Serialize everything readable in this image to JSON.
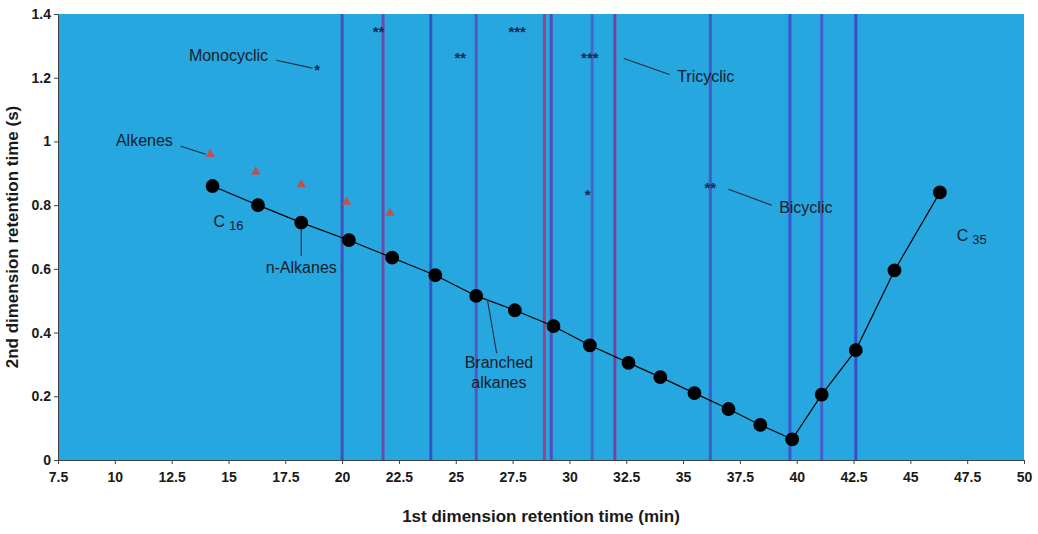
{
  "chart_data": {
    "type": "scatter",
    "xlabel": "1st dimension retention time (min)",
    "ylabel": "2nd dimension retention time (s)",
    "xlim": [
      7.5,
      50
    ],
    "xticks": [
      7.5,
      10,
      12.5,
      15,
      17.5,
      20,
      22.5,
      25,
      27.5,
      30,
      32.5,
      35,
      37.5,
      40,
      42.5,
      45,
      47.5,
      50
    ],
    "ylim": [
      0,
      1.4
    ],
    "yticks": [
      0,
      0.2,
      0.4,
      0.6,
      0.8,
      1,
      1.2,
      1.4
    ],
    "grid": false,
    "series": [
      {
        "color": "#000000",
        "marker": "circle",
        "line_style": "solid",
        "x": [
          14.3,
          16.3,
          18.2,
          20.3,
          22.2,
          24.1,
          25.9,
          27.6,
          29.3,
          30.9,
          32.6,
          34.0,
          35.5,
          37.0,
          38.4,
          39.8,
          41.1,
          42.6,
          44.3,
          46.3
        ],
        "values": [
          0.86,
          0.8,
          0.745,
          0.69,
          0.635,
          0.58,
          0.515,
          0.47,
          0.42,
          0.36,
          0.305,
          0.26,
          0.21,
          0.16,
          0.11,
          0.065,
          0.205,
          0.345,
          0.595,
          0.84
        ]
      },
      {
        "color": "#c0504d",
        "marker": "triangle",
        "line_style": "none",
        "x": [
          14.2,
          16.2,
          18.2,
          20.2,
          22.1
        ],
        "values": [
          0.96,
          0.905,
          0.865,
          0.81,
          0.775
        ]
      }
    ],
    "peaks": {
      "x": [
        20.0,
        21.8,
        23.9,
        25.9,
        28.9,
        29.2,
        31.0,
        32.0,
        36.2,
        39.7,
        41.1,
        42.6
      ],
      "colors": [
        "#4b3fb0",
        "#7a3aa0",
        "#3a44c2",
        "#5a48b8",
        "#b03070",
        "#5a3db0",
        "#4f58c8",
        "#8a2f8f",
        "#4a4cc0",
        "#3e48c4",
        "#4a50c6",
        "#3a40c0"
      ]
    },
    "annotations": [
      {
        "text": "Alkenes",
        "x": 11.3,
        "y": 1.0,
        "line": [
          12.9,
          0.985,
          14.0,
          0.96
        ]
      },
      {
        "text": "Monocyclic",
        "x": 15.0,
        "y": 1.265,
        "line": [
          17.1,
          1.255,
          18.7,
          1.23
        ]
      },
      {
        "text": "Tricyclic",
        "x": 36.0,
        "y": 1.2,
        "line": [
          32.4,
          1.26,
          34.4,
          1.21
        ]
      },
      {
        "text": "Bicyclic",
        "x": 40.4,
        "y": 0.79,
        "line": [
          37.0,
          0.85,
          38.9,
          0.8
        ]
      },
      {
        "text": "C16",
        "x": 15.0,
        "y": 0.745
      },
      {
        "text": "n-Alkanes",
        "x": 18.2,
        "y": 0.6,
        "line": [
          18.2,
          0.725,
          18.2,
          0.64
        ]
      },
      {
        "text": "Branched alkanes",
        "x": 26.9,
        "y": 0.27,
        "line": [
          26.4,
          0.5,
          26.8,
          0.335
        ]
      },
      {
        "text": "C35",
        "x": 47.7,
        "y": 0.7
      },
      {
        "text": "**",
        "x": 21.6,
        "y": 1.34
      },
      {
        "text": "*",
        "x": 18.9,
        "y": 1.22
      },
      {
        "text": "**",
        "x": 25.2,
        "y": 1.26
      },
      {
        "text": "***",
        "x": 27.7,
        "y": 1.34
      },
      {
        "text": "***",
        "x": 30.9,
        "y": 1.26
      },
      {
        "text": "*",
        "x": 30.8,
        "y": 0.83
      },
      {
        "text": "**",
        "x": 36.2,
        "y": 0.85
      }
    ]
  }
}
